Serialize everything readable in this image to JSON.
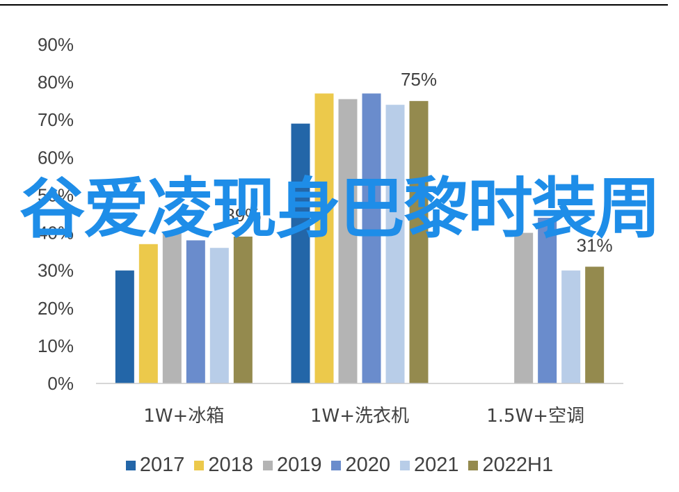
{
  "colors": {
    "series": [
      "#2366a8",
      "#ecc94b",
      "#b4b4b4",
      "#6a8ccc",
      "#b8cde8",
      "#948a4e"
    ],
    "overlay_title": "#1e8de8",
    "axis_text": "#404040",
    "axis_line": "#c8c8c8"
  },
  "overlay_title": "谷爱凌现身巴黎时装周",
  "chart_data": {
    "type": "bar",
    "categories": [
      "1W+冰箱",
      "1W+洗衣机",
      "1.5W+空调"
    ],
    "series": [
      {
        "name": "2017",
        "values": [
          30,
          69,
          null
        ]
      },
      {
        "name": "2018",
        "values": [
          37,
          77,
          null
        ]
      },
      {
        "name": "2019",
        "values": [
          40,
          75.5,
          40
        ]
      },
      {
        "name": "2020",
        "values": [
          38,
          77,
          44
        ]
      },
      {
        "name": "2021",
        "values": [
          36,
          74,
          30
        ]
      },
      {
        "name": "2022H1",
        "values": [
          39,
          75,
          31
        ]
      }
    ],
    "data_labels": [
      {
        "series": "2022H1",
        "category": "1W+冰箱",
        "text": "39%"
      },
      {
        "series": "2022H1",
        "category": "1W+洗衣机",
        "text": "75%"
      },
      {
        "series": "2022H1",
        "category": "1.5W+空调",
        "text": "31%"
      }
    ],
    "y_ticks": [
      "0%",
      "10%",
      "20%",
      "30%",
      "40%",
      "50%",
      "60%",
      "70%",
      "80%",
      "90%"
    ],
    "ylim": [
      0,
      90
    ],
    "legend_position": "bottom",
    "grid": false
  }
}
